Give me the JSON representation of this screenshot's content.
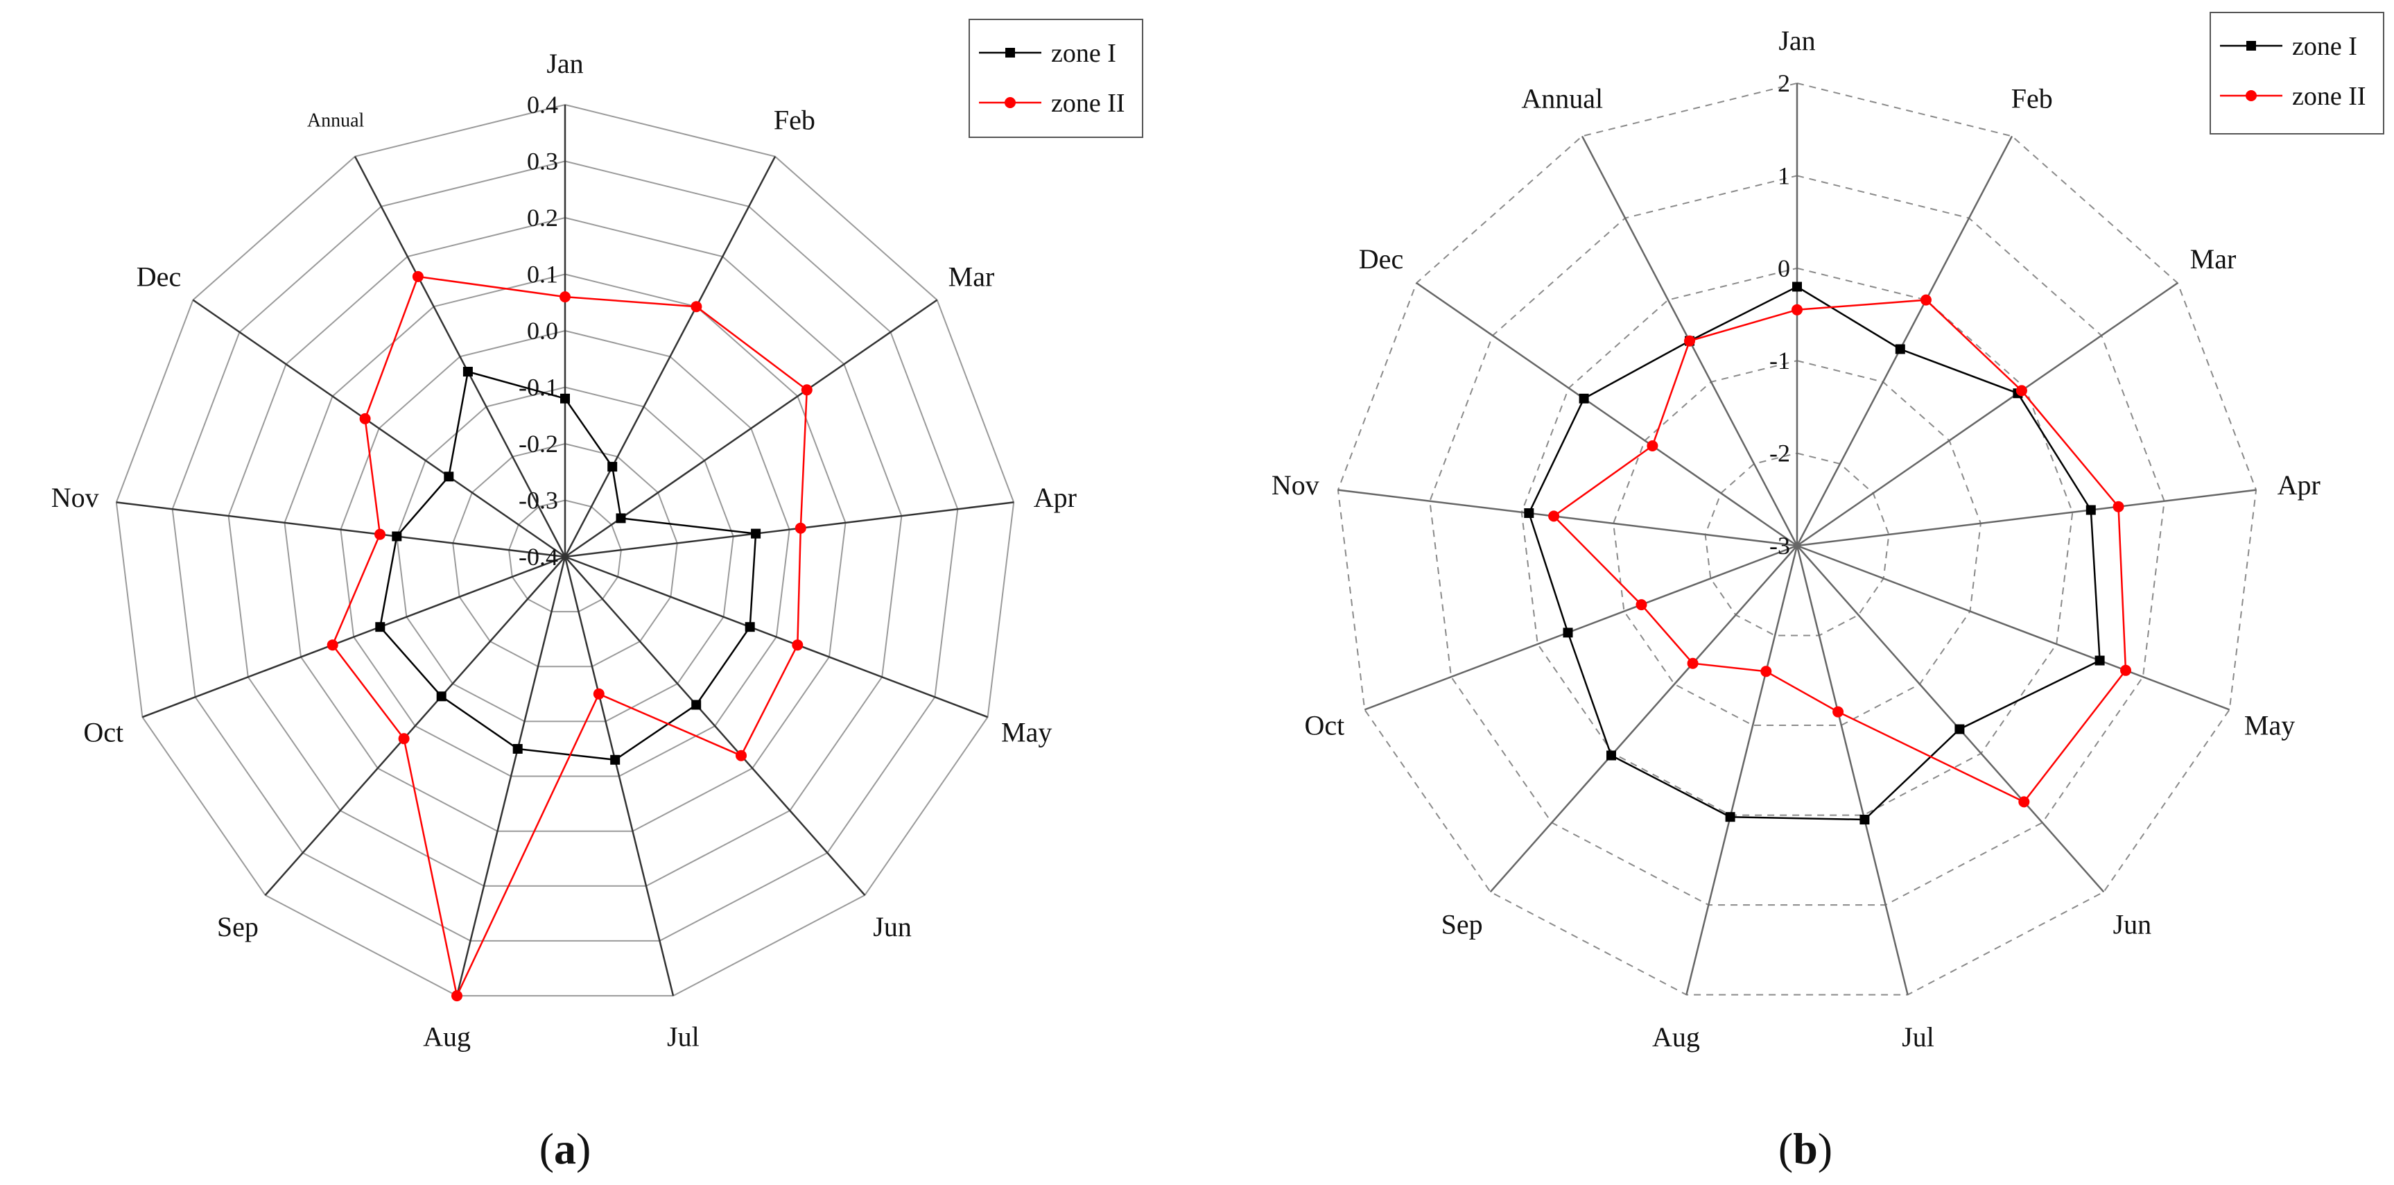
{
  "chart_data": [
    {
      "type": "radar",
      "panel": "a",
      "categories": [
        "Jan",
        "Feb",
        "Mar",
        "Apr",
        "May",
        "Jun",
        "Jul",
        "Aug",
        "Sep",
        "Oct",
        "Nov",
        "Dec",
        "Annual"
      ],
      "rlim": [
        -0.4,
        0.4
      ],
      "radial_ticks": [
        "0.4",
        "0.3",
        "0.2",
        "0.1",
        "0.0",
        "-0.1",
        "-0.2",
        "-0.3",
        "-0.4"
      ],
      "radial_tick_values": [
        0.4,
        0.3,
        0.2,
        0.1,
        0.0,
        -0.1,
        -0.2,
        -0.3,
        -0.4
      ],
      "grid": "solid",
      "legend_position": "top-right",
      "series": [
        {
          "name": "zone I",
          "color": "#000000",
          "marker": "square",
          "values": [
            -0.12,
            -0.22,
            -0.28,
            -0.06,
            -0.05,
            -0.05,
            -0.03,
            -0.05,
            -0.07,
            -0.05,
            -0.1,
            -0.15,
            -0.03
          ]
        },
        {
          "name": "zone II",
          "color": "#ff0000",
          "marker": "circle",
          "values": [
            0.06,
            0.1,
            0.12,
            0.02,
            0.04,
            0.07,
            -0.15,
            0.4,
            0.03,
            0.04,
            -0.07,
            0.03,
            0.16
          ]
        }
      ],
      "caption": "a"
    },
    {
      "type": "radar",
      "panel": "b",
      "categories": [
        "Jan",
        "Feb",
        "Mar",
        "Apr",
        "May",
        "Jun",
        "Jul",
        "Aug",
        "Sep",
        "Oct",
        "Nov",
        "Dec",
        "Annual"
      ],
      "rlim": [
        -3,
        2
      ],
      "radial_ticks": [
        "2",
        "1",
        "0",
        "-1",
        "-2",
        "-3"
      ],
      "radial_tick_values": [
        2,
        1,
        0,
        -1,
        -2,
        -3
      ],
      "grid": "dashed",
      "legend_position": "top-right",
      "series": [
        {
          "name": "zone I",
          "color": "#000000",
          "marker": "square",
          "values": [
            -0.2,
            -0.6,
            -0.1,
            0.2,
            0.5,
            -0.35,
            0.05,
            0.02,
            0.03,
            -0.35,
            -0.08,
            -0.2,
            -0.5
          ]
        },
        {
          "name": "zone II",
          "color": "#ff0000",
          "marker": "circle",
          "values": [
            -0.45,
            0.0,
            -0.05,
            0.5,
            0.8,
            0.7,
            -1.15,
            -1.6,
            -1.3,
            -1.2,
            -0.35,
            -1.1,
            -0.5
          ]
        }
      ],
      "caption": "b"
    }
  ]
}
